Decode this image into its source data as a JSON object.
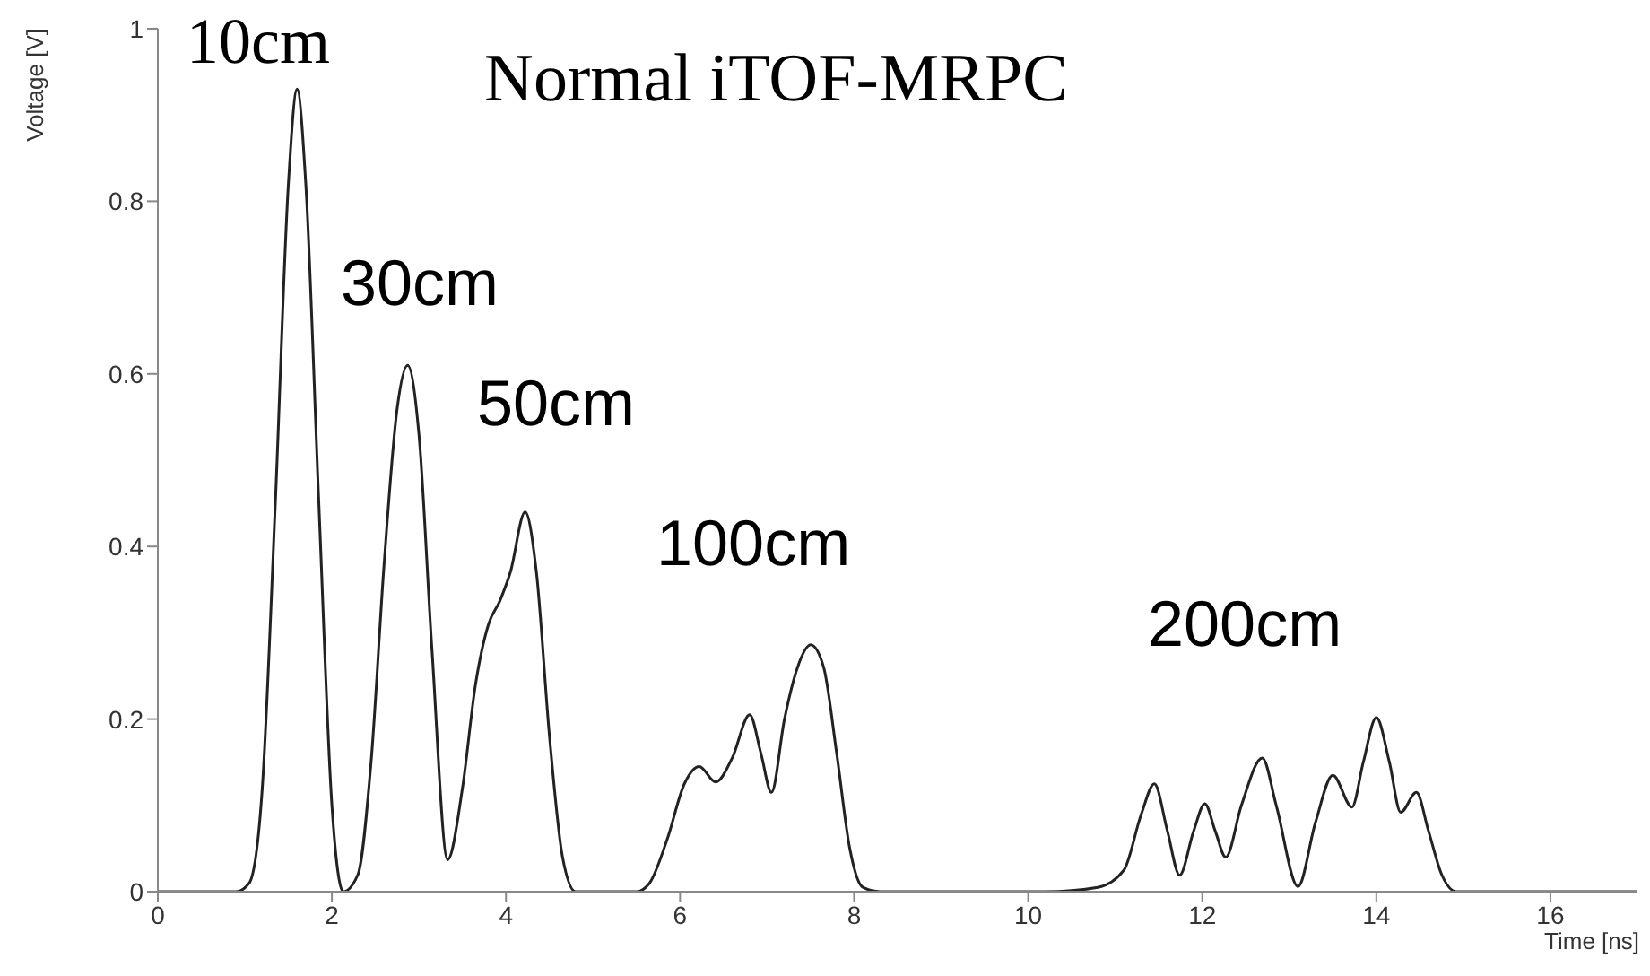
{
  "chart_data": {
    "type": "line",
    "title": "Normal iTOF-MRPC",
    "xlabel": "Time [ns]",
    "ylabel": "Voltage [V]",
    "x": [
      0,
      0.9,
      1.05,
      1.2,
      1.35,
      1.5,
      1.6,
      1.7,
      1.85,
      2.0,
      2.13,
      2.3,
      2.45,
      2.6,
      2.75,
      2.87,
      3.0,
      3.15,
      3.33,
      3.5,
      3.65,
      3.8,
      3.93,
      4.05,
      4.22,
      4.35,
      4.5,
      4.65,
      4.8,
      5.5,
      5.65,
      5.85,
      6.05,
      6.22,
      6.41,
      6.6,
      6.8,
      6.93,
      7.05,
      7.2,
      7.35,
      7.5,
      7.65,
      7.8,
      7.95,
      8.1,
      8.3,
      10.2,
      10.8,
      11.1,
      11.3,
      11.45,
      11.6,
      11.74,
      11.9,
      12.03,
      12.15,
      12.27,
      12.45,
      12.69,
      12.85,
      13.1,
      13.3,
      13.5,
      13.72,
      13.85,
      14.0,
      14.15,
      14.28,
      14.46,
      14.6,
      14.75,
      14.92,
      17
    ],
    "series": [
      {
        "color": "#222222",
        "values": [
          0,
          0,
          0.01,
          0.12,
          0.45,
          0.82,
          0.93,
          0.82,
          0.45,
          0.1,
          0,
          0.02,
          0.15,
          0.38,
          0.56,
          0.61,
          0.53,
          0.28,
          0.037,
          0.12,
          0.24,
          0.31,
          0.337,
          0.37,
          0.44,
          0.37,
          0.18,
          0.04,
          0,
          0,
          0.01,
          0.06,
          0.125,
          0.145,
          0.127,
          0.155,
          0.205,
          0.16,
          0.115,
          0.2,
          0.26,
          0.286,
          0.26,
          0.16,
          0.05,
          0.005,
          0,
          0,
          0.005,
          0.025,
          0.09,
          0.125,
          0.07,
          0.019,
          0.07,
          0.102,
          0.07,
          0.04,
          0.1,
          0.155,
          0.1,
          0.006,
          0.08,
          0.135,
          0.098,
          0.15,
          0.202,
          0.15,
          0.092,
          0.115,
          0.07,
          0.02,
          0,
          0
        ]
      }
    ],
    "xlim": [
      0,
      17
    ],
    "xticks": [
      0,
      2,
      4,
      6,
      8,
      10,
      12,
      14,
      16
    ],
    "ylim": [
      0,
      1
    ],
    "yticks": [
      0,
      0.2,
      0.4,
      0.6,
      0.8,
      1
    ],
    "grid": false,
    "legend": false,
    "marker": "none",
    "line_style": "solid",
    "annotations": [
      "10cm",
      "30cm",
      "50cm",
      "100cm",
      "200cm"
    ]
  }
}
